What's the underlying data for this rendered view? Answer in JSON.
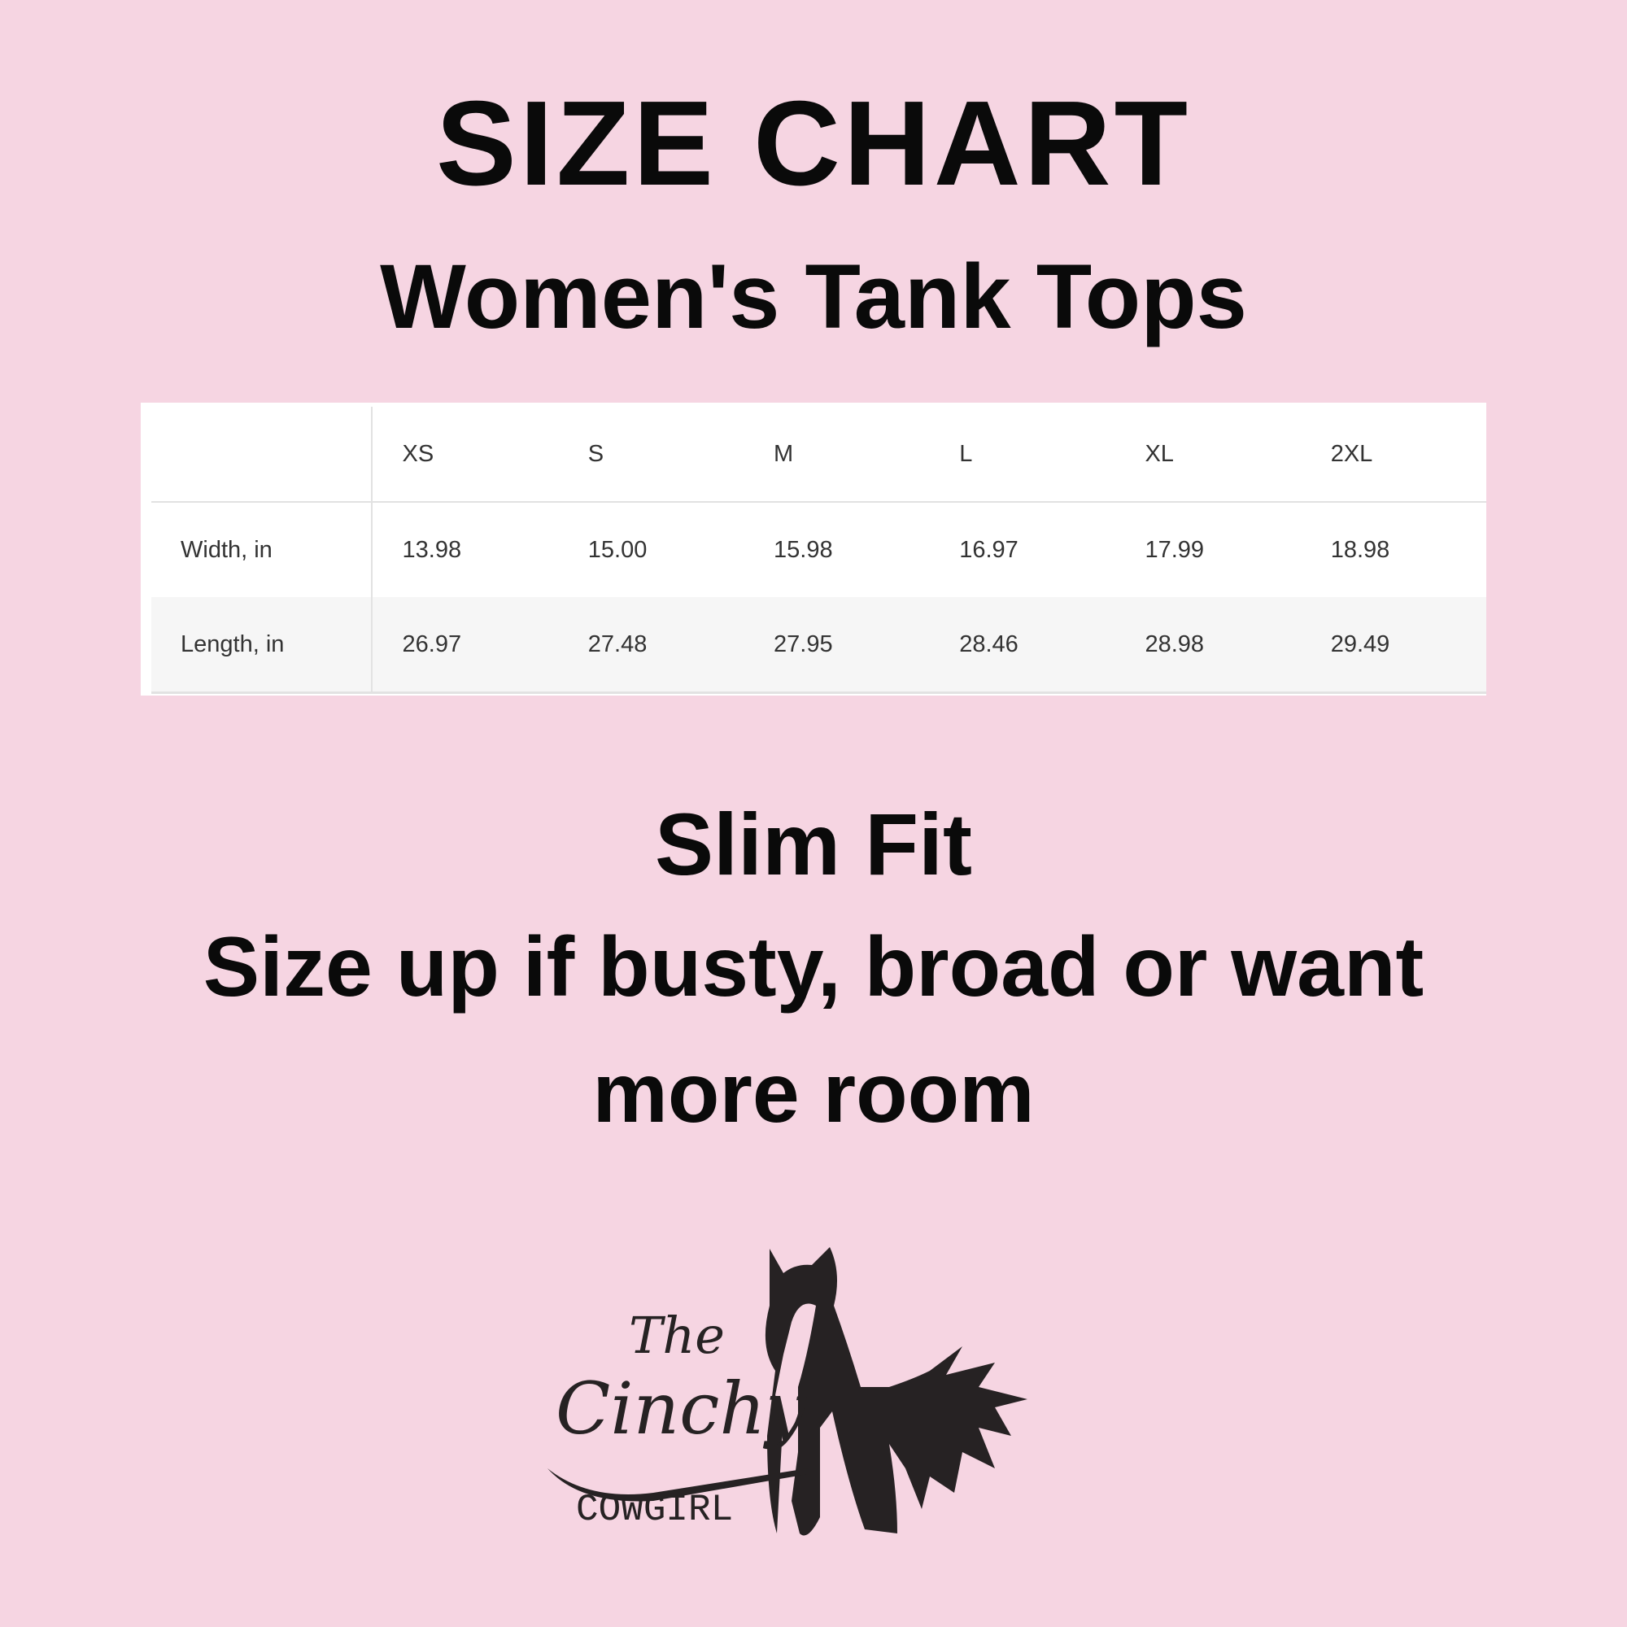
{
  "title": "SIZE CHART",
  "subtitle": "Women's Tank Tops",
  "table": {
    "headers": [
      "",
      "XS",
      "S",
      "M",
      "L",
      "XL",
      "2XL"
    ],
    "rows": [
      {
        "label": "Width, in",
        "values": [
          "13.98",
          "15.00",
          "15.98",
          "16.97",
          "17.99",
          "18.98"
        ]
      },
      {
        "label": "Length, in",
        "values": [
          "26.97",
          "27.48",
          "27.95",
          "28.46",
          "28.98",
          "29.49"
        ]
      }
    ]
  },
  "notes": [
    "Slim Fit",
    "Size up if busty, broad or want",
    "more room"
  ],
  "logo": {
    "line1": "The",
    "line2": "Cinchy",
    "line3": "COWGIRL"
  },
  "colors": {
    "background": "#f6d5e2",
    "text": "#0a0a0a",
    "logo": "#262223"
  }
}
